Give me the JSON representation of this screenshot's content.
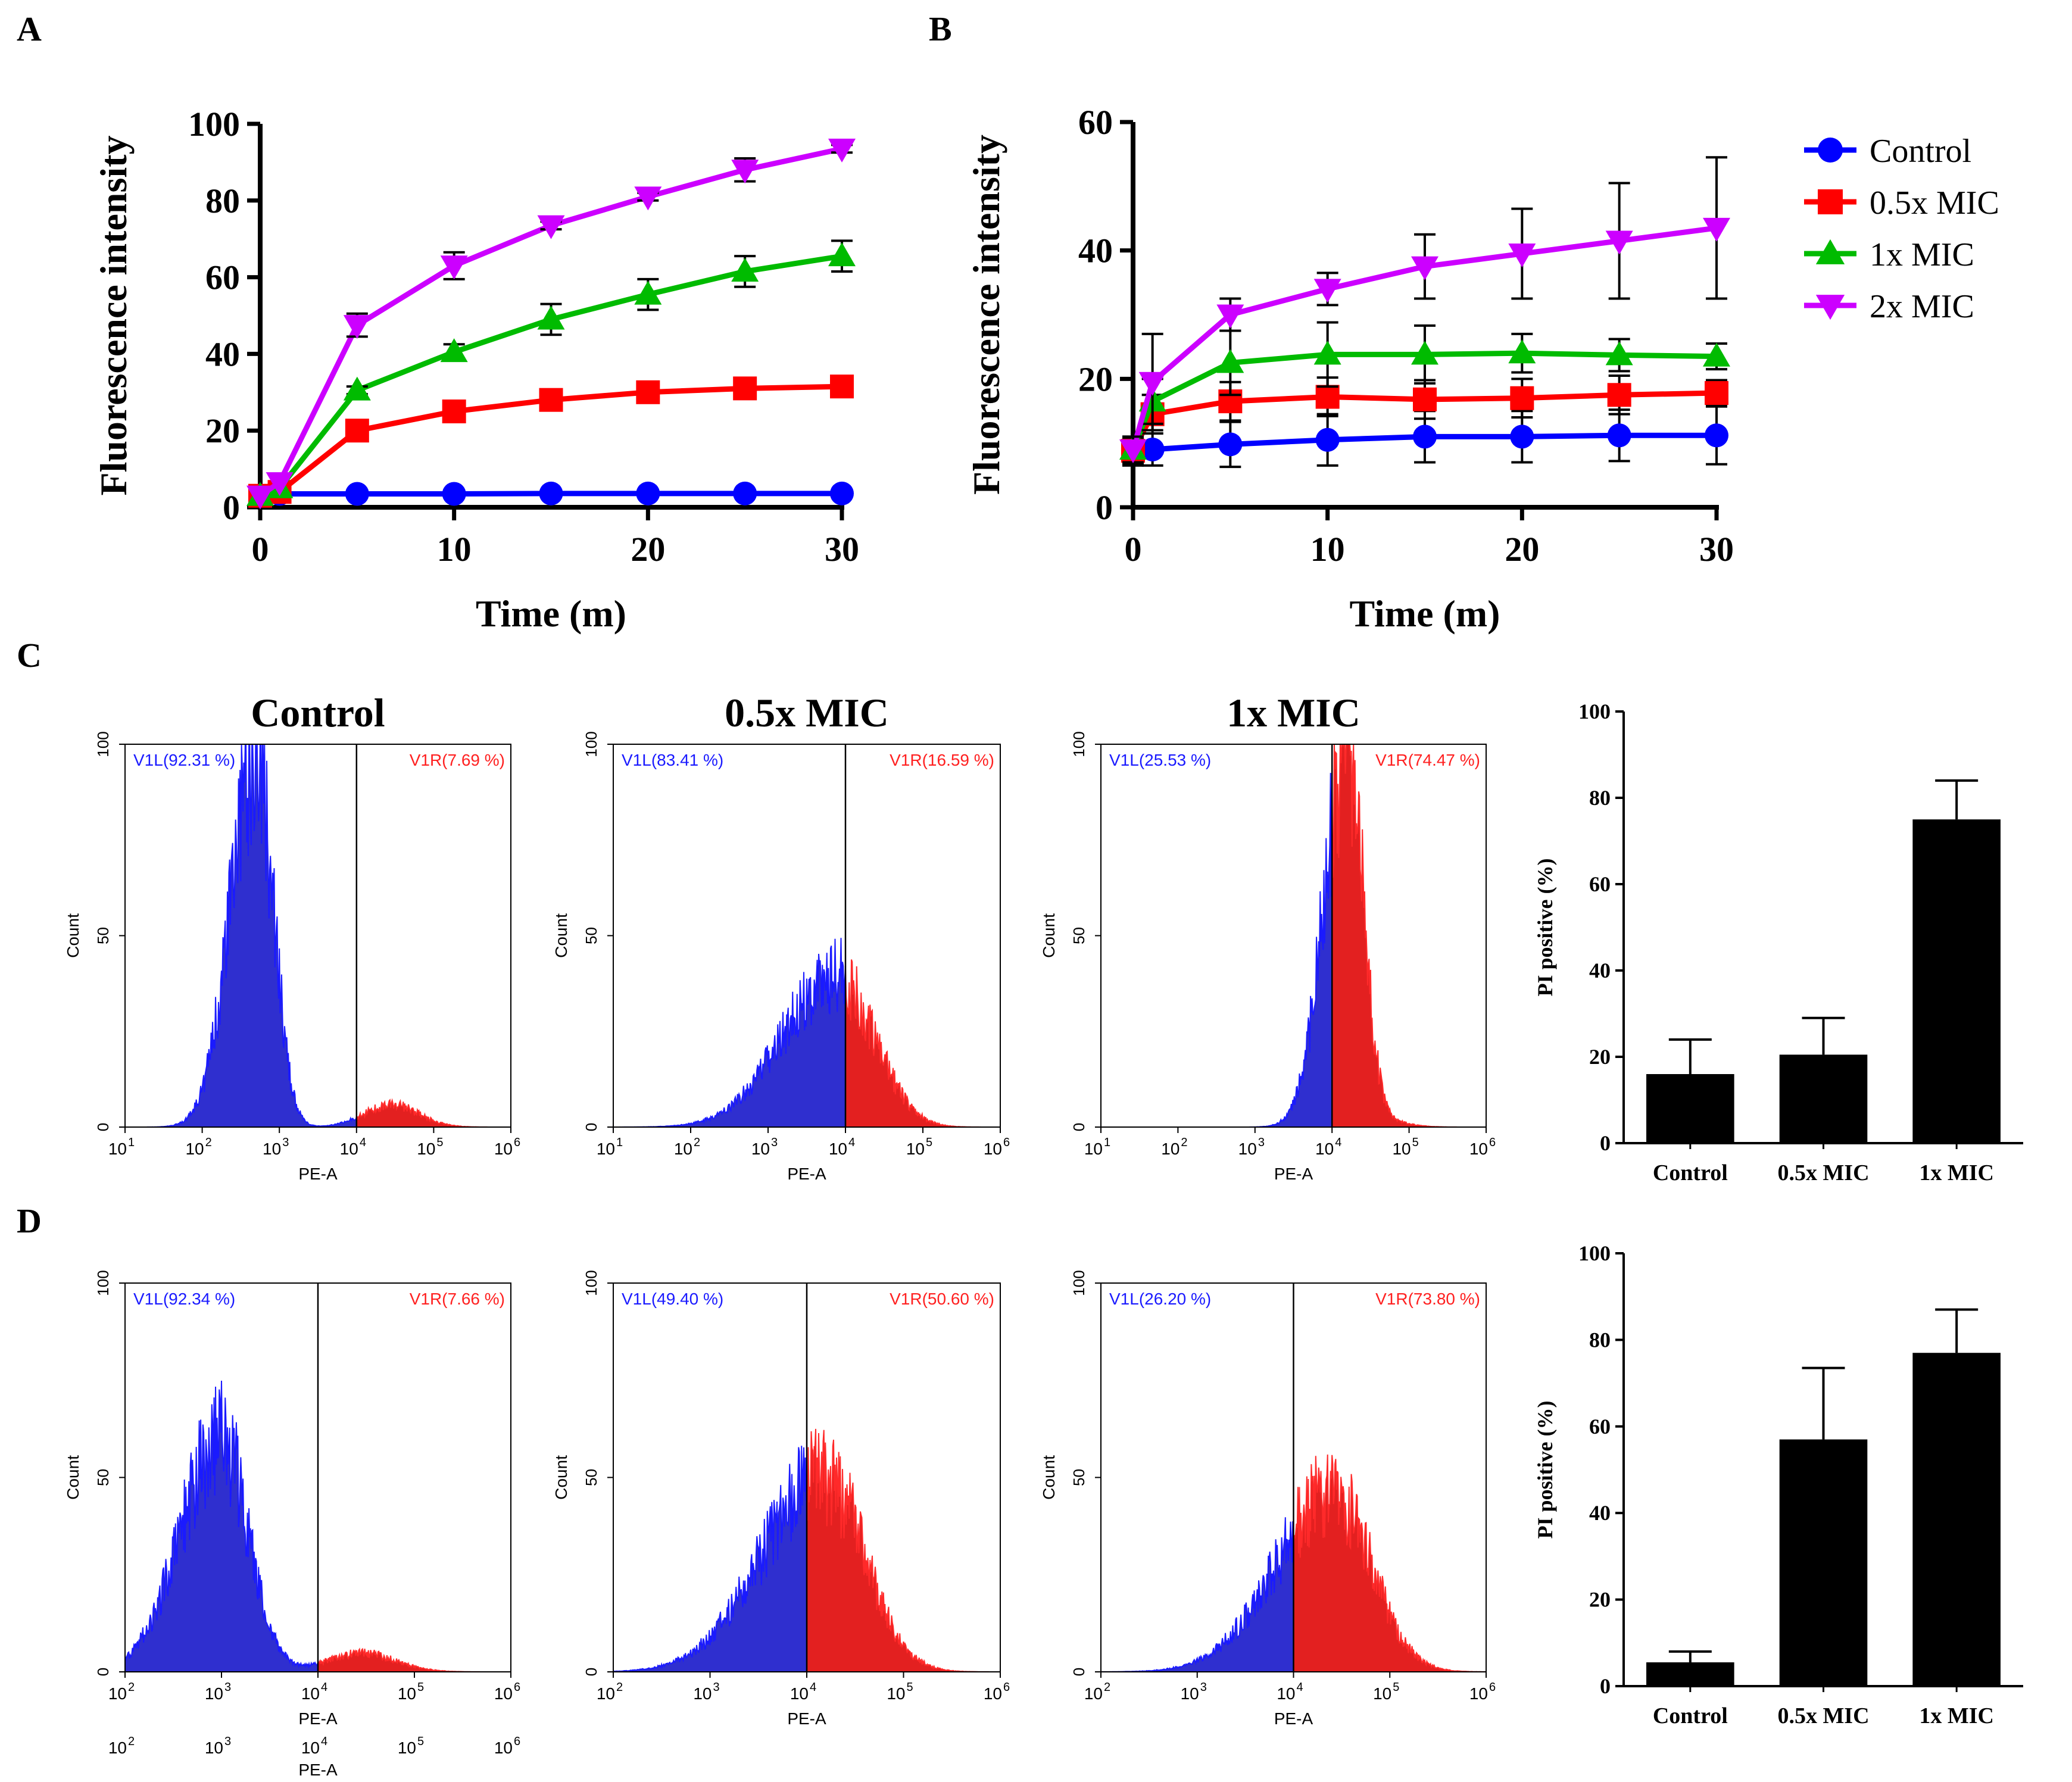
{
  "panel_labels": [
    "A",
    "B",
    "C",
    "D"
  ],
  "colors": {
    "control": "#0000ff",
    "half_mic": "#ff0000",
    "one_mic": "#00bb00",
    "two_mic": "#cc00ff",
    "gate_left": "#2f2fcf",
    "gate_right": "#e32020",
    "bar": "#000000"
  },
  "legend": {
    "entries": [
      {
        "label": "Control",
        "color": "#0000ff",
        "marker": "circle"
      },
      {
        "label": "0.5x MIC",
        "color": "#ff0000",
        "marker": "square"
      },
      {
        "label": "1x MIC",
        "color": "#00bb00",
        "marker": "triangle-up"
      },
      {
        "label": "2x MIC",
        "color": "#cc00ff",
        "marker": "triangle-down"
      }
    ]
  },
  "chart_data": [
    {
      "panel": "A",
      "type": "line",
      "xlabel": "Time  (m)",
      "ylabel": "Fluorescence intensity",
      "xlim": [
        0,
        30
      ],
      "ylim": [
        0,
        100
      ],
      "xticks": [
        0,
        10,
        20,
        30
      ],
      "yticks": [
        0,
        20,
        40,
        60,
        80,
        100
      ],
      "x": [
        0,
        1,
        5,
        10,
        15,
        20,
        25,
        30
      ],
      "series": [
        {
          "name": "Control",
          "values": [
            3,
            3.5,
            3.5,
            3.5,
            3.6,
            3.6,
            3.6,
            3.6
          ],
          "errors": [
            0,
            0,
            0,
            0,
            0,
            0,
            0,
            0
          ]
        },
        {
          "name": "0.5x MIC",
          "values": [
            3,
            4,
            20,
            25,
            28,
            30,
            31,
            31.5
          ],
          "errors": [
            0,
            0,
            1,
            1,
            1,
            1,
            1,
            1
          ]
        },
        {
          "name": "1x MIC",
          "values": [
            3,
            5,
            30.5,
            40.5,
            49,
            55.5,
            61.5,
            65.5
          ],
          "errors": [
            0,
            0,
            1,
            2,
            4,
            4,
            4,
            4
          ]
        },
        {
          "name": "2x MIC",
          "values": [
            3,
            6.5,
            47.5,
            63,
            73.5,
            81,
            88,
            93.5
          ],
          "errors": [
            0,
            0,
            3,
            3.5,
            1,
            1,
            3,
            1
          ]
        }
      ]
    },
    {
      "panel": "B",
      "type": "line",
      "xlabel": "Time  (m)",
      "ylabel": "Fluorescence intensity",
      "xlim": [
        0,
        30
      ],
      "ylim": [
        0,
        60
      ],
      "xticks": [
        0,
        10,
        20,
        30
      ],
      "yticks": [
        0,
        20,
        40,
        60
      ],
      "x": [
        0,
        1,
        5,
        10,
        15,
        20,
        25,
        30
      ],
      "series": [
        {
          "name": "Control",
          "values": [
            8.5,
            9,
            9.8,
            10.5,
            11,
            11,
            11.2,
            11.2
          ],
          "errors": [
            2,
            2.5,
            3.5,
            4,
            4,
            4,
            4,
            4.5
          ]
        },
        {
          "name": "0.5x MIC",
          "values": [
            8.8,
            14.5,
            16.5,
            17.2,
            16.8,
            17,
            17.5,
            17.8
          ],
          "errors": [
            2,
            3,
            3,
            3,
            3,
            3,
            3,
            2
          ]
        },
        {
          "name": "1x MIC",
          "values": [
            9,
            16.5,
            22.5,
            23.8,
            23.8,
            24,
            23.7,
            23.5
          ],
          "errors": [
            2,
            3.5,
            5,
            5,
            4.5,
            3,
            2.5,
            2
          ]
        },
        {
          "name": "2x MIC",
          "values": [
            9,
            19.5,
            30,
            34,
            37.5,
            39.5,
            41.5,
            43.5
          ],
          "errors": [
            2,
            7.5,
            2.5,
            2.5,
            5,
            7,
            9,
            11
          ]
        }
      ]
    },
    {
      "panel": "C",
      "type": "bar",
      "ylabel": "PI positive (%)",
      "categories": [
        "Control",
        "0.5x MIC",
        "1x MIC"
      ],
      "values": [
        16,
        20.5,
        75
      ],
      "errors": [
        8,
        8.5,
        9
      ],
      "ylim": [
        0,
        100
      ],
      "yticks": [
        0,
        20,
        40,
        60,
        80,
        100
      ]
    },
    {
      "panel": "D",
      "type": "bar",
      "ylabel": "PI positive (%)",
      "categories": [
        "Control",
        "0.5x MIC",
        "1x MIC"
      ],
      "values": [
        5.5,
        57,
        77
      ],
      "errors": [
        2.5,
        16.5,
        10
      ],
      "ylim": [
        0,
        100
      ],
      "yticks": [
        0,
        20,
        40,
        60,
        80,
        100
      ]
    }
  ],
  "histograms": {
    "xlabel": "PE-A",
    "ylabel": "Count",
    "yticks": [
      "0",
      "50",
      "100"
    ],
    "row_c": {
      "x_exponents": [
        1,
        2,
        3,
        4,
        5,
        6
      ],
      "plots": [
        {
          "title": "Control",
          "left_gate": "V1L(92.31 %)",
          "right_gate": "V1R(7.69 %)",
          "gate_log": 4.0,
          "peak_log": 2.7,
          "peak_height": 100,
          "width": 0.22,
          "tail_height": 6
        },
        {
          "title": "0.5x MIC",
          "left_gate": "V1L(83.41 %)",
          "right_gate": "V1R(16.59 %)",
          "gate_log": 4.0,
          "peak_log": 3.85,
          "peak_height": 40,
          "width": 0.45,
          "tail_height": 4
        },
        {
          "title": "1x MIC",
          "left_gate": "V1L(25.53 %)",
          "right_gate": "V1R(74.47 %)",
          "gate_log": 4.0,
          "peak_log": 4.2,
          "peak_height": 100,
          "width": 0.2,
          "tail_height": 3
        }
      ]
    },
    "row_d": {
      "x_exponents": [
        2,
        3,
        4,
        5,
        6
      ],
      "extra_tick_labels": [
        "10",
        "10",
        "10",
        "10",
        "10"
      ],
      "extra_exponents": [
        "2",
        "3",
        "4",
        "5",
        "6"
      ],
      "extra_xlabel": "PE-A",
      "plots": [
        {
          "left_gate": "V1L(92.34 %)",
          "right_gate": "V1R(7.66 %)",
          "gate_log": 4.0,
          "peak_log": 3.0,
          "peak_height": 62,
          "width": 0.28,
          "tail_height": 5
        },
        {
          "left_gate": "V1L(49.40 %)",
          "right_gate": "V1R(50.60 %)",
          "gate_log": 4.0,
          "peak_log": 4.15,
          "peak_height": 50,
          "width": 0.42,
          "tail_height": 3
        },
        {
          "left_gate": "V1L(26.20 %)",
          "right_gate": "V1R(73.80 %)",
          "gate_log": 4.0,
          "peak_log": 4.4,
          "peak_height": 45,
          "width": 0.4,
          "tail_height": 3
        }
      ]
    }
  }
}
